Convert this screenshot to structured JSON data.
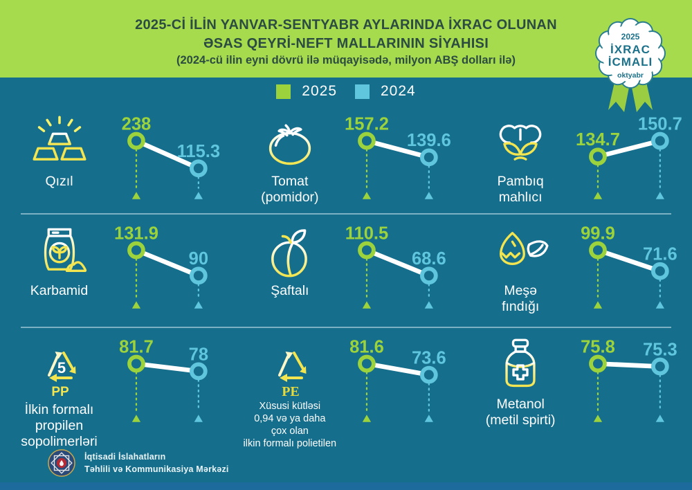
{
  "header": {
    "title_line1": "2025-Cİ İLİN YANVAR-SENTYABR AYLARINDA İXRAC OLUNAN",
    "title_line2": "ƏSAS QEYRİ-NEFT MALLARININ SİYAHISI",
    "subtitle": "(2024-cü ilin eyni dövrü ilə müqayisədə, milyon ABŞ dolları ilə)",
    "badge": {
      "year": "2025",
      "line1": "İXRAC",
      "line2": "İCMALI",
      "month": "oktyabr"
    }
  },
  "legend": [
    {
      "label": "2025",
      "color": "#9CD33C"
    },
    {
      "label": "2024",
      "color": "#5FC6DE"
    }
  ],
  "footer": {
    "org_line1": "İqtisadi İslahatların",
    "org_line2": "Təhlili və Kommunikasiya Mərkəzi"
  },
  "colors": {
    "background": "#156E8C",
    "header_band": "#A6DB4E",
    "accent_2025": "#9CD33C",
    "accent_2024": "#5FC6DE",
    "icon_yellow": "#F2E550",
    "connector": "#FFFFFF"
  },
  "chart_data": {
    "type": "slope",
    "title": "2025-ci ilin yanvar-sentyabr aylarında ixrac olunan əsas qeyri-neft mallarının siyahısı",
    "unit": "milyon ABŞ dolları",
    "series_labels": [
      "2025",
      "2024"
    ],
    "layout": {
      "grid": "3x3",
      "legend_position": "top-center",
      "higher_value_drawn_higher": true
    },
    "items": [
      {
        "label": "Qızıl",
        "icon": "gold-bars-icon",
        "v2025": 238,
        "v2024": 115.3,
        "v2025_text": "238",
        "v2024_text": "115.3"
      },
      {
        "label": "Tomat\n(pomidor)",
        "icon": "tomato-icon",
        "v2025": 157.2,
        "v2024": 139.6,
        "v2025_text": "157.2",
        "v2024_text": "139.6"
      },
      {
        "label": "Pambıq\nmahlıcı",
        "icon": "cotton-icon",
        "v2025": 134.7,
        "v2024": 150.7,
        "v2025_text": "134.7",
        "v2024_text": "150.7"
      },
      {
        "label": "Karbamid",
        "icon": "fertilizer-bag-icon",
        "v2025": 131.9,
        "v2024": 90,
        "v2025_text": "131.9",
        "v2024_text": "90"
      },
      {
        "label": "Şaftalı",
        "icon": "peach-icon",
        "v2025": 110.5,
        "v2024": 68.6,
        "v2025_text": "110.5",
        "v2024_text": "68.6"
      },
      {
        "label": "Meşə\nfındığı",
        "icon": "hazelnut-icon",
        "v2025": 99.9,
        "v2024": 71.6,
        "v2025_text": "99.9",
        "v2024_text": "71.6"
      },
      {
        "label": "İlkin formalı\npropilen\nsopolimerləri",
        "icon": "recycling-pp-icon",
        "icon_text_center": "5",
        "icon_text_label": "PP",
        "v2025": 81.7,
        "v2024": 78,
        "v2025_text": "81.7",
        "v2024_text": "78"
      },
      {
        "label": "Xüsusi kütləsi\n0,94 və ya daha\nçox olan\nilkin formalı polietilen",
        "icon": "recycling-pe-icon",
        "icon_text_label": "PE",
        "v2025": 81.6,
        "v2024": 73.6,
        "v2025_text": "81.6",
        "v2024_text": "73.6"
      },
      {
        "label": "Metanol\n(metil spirti)",
        "icon": "medicine-bottle-icon",
        "v2025": 75.8,
        "v2024": 75.3,
        "v2025_text": "75.8",
        "v2024_text": "75.3"
      }
    ]
  }
}
